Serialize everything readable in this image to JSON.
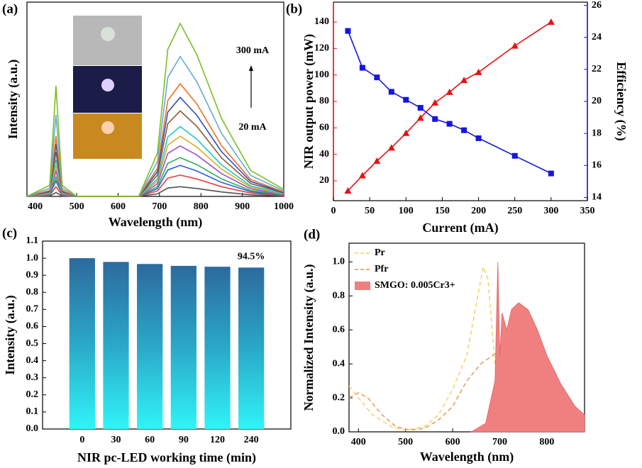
{
  "chart_data": [
    {
      "type": "line",
      "label": "(a)",
      "xlabel": "Wavelength (nm)",
      "ylabel": "Intensity (a.u.)",
      "annotations": [
        "300 mA",
        "20 mA"
      ],
      "xlim": [
        380,
        1000
      ],
      "xticks": [
        400,
        500,
        600,
        700,
        800,
        900,
        1000
      ],
      "ylim": [
        0,
        1
      ],
      "x": [
        380,
        435,
        450,
        465,
        500,
        650,
        695,
        720,
        750,
        790,
        850,
        920,
        1000
      ],
      "series": [
        {
          "color": "#505050",
          "values": [
            0,
            0.002,
            0.02,
            0.002,
            0,
            0,
            0.013,
            0.043,
            0.05,
            0.041,
            0.023,
            0.008,
            0.002
          ]
        },
        {
          "color": "#e8403a",
          "values": [
            0,
            0.005,
            0.05,
            0.005,
            0,
            0,
            0.028,
            0.094,
            0.11,
            0.09,
            0.05,
            0.017,
            0.004
          ]
        },
        {
          "color": "#2a5fd6",
          "values": [
            0,
            0.008,
            0.08,
            0.008,
            0,
            0,
            0.04,
            0.136,
            0.16,
            0.131,
            0.072,
            0.024,
            0.006
          ]
        },
        {
          "color": "#2fae5a",
          "values": [
            0,
            0.01,
            0.1,
            0.01,
            0,
            0,
            0.05,
            0.17,
            0.2,
            0.164,
            0.09,
            0.03,
            0.008
          ]
        },
        {
          "color": "#a050d0",
          "values": [
            0,
            0.013,
            0.13,
            0.013,
            0,
            0,
            0.065,
            0.221,
            0.26,
            0.213,
            0.117,
            0.039,
            0.01
          ]
        },
        {
          "color": "#d8b020",
          "values": [
            0,
            0.016,
            0.16,
            0.016,
            0,
            0,
            0.078,
            0.264,
            0.31,
            0.254,
            0.14,
            0.047,
            0.012
          ]
        },
        {
          "color": "#20c8c8",
          "values": [
            0,
            0.019,
            0.19,
            0.019,
            0,
            0,
            0.09,
            0.306,
            0.36,
            0.295,
            0.162,
            0.054,
            0.014
          ]
        },
        {
          "color": "#8a5a3a",
          "values": [
            0,
            0.023,
            0.23,
            0.023,
            0,
            0,
            0.11,
            0.374,
            0.44,
            0.361,
            0.198,
            0.066,
            0.018
          ]
        },
        {
          "color": "#3050c0",
          "values": [
            0,
            0.027,
            0.27,
            0.027,
            0,
            0,
            0.128,
            0.434,
            0.51,
            0.418,
            0.23,
            0.077,
            0.02
          ]
        },
        {
          "color": "#f07020",
          "values": [
            0,
            0.031,
            0.31,
            0.031,
            0,
            0,
            0.145,
            0.493,
            0.58,
            0.476,
            0.261,
            0.087,
            0.023
          ]
        },
        {
          "color": "#6aa8d8",
          "values": [
            0,
            0.042,
            0.42,
            0.042,
            0,
            0,
            0.18,
            0.612,
            0.72,
            0.59,
            0.324,
            0.108,
            0.029
          ]
        },
        {
          "color": "#78c020",
          "values": [
            0,
            0.057,
            0.57,
            0.057,
            0,
            0,
            0.223,
            0.757,
            0.89,
            0.73,
            0.4,
            0.134,
            0.036
          ]
        }
      ]
    },
    {
      "type": "line",
      "label": "(b)",
      "xlabel": "Current (mA)",
      "ylabel": "NIR output power (mW)",
      "y2label": "Efficiency (%)",
      "xlim": [
        0,
        350
      ],
      "xticks": [
        0,
        50,
        100,
        150,
        200,
        250,
        300,
        350
      ],
      "ylim": [
        5,
        155
      ],
      "yticks": [
        20,
        40,
        60,
        80,
        100,
        120,
        140
      ],
      "y2lim": [
        13.8,
        26.2
      ],
      "y2ticks": [
        14,
        16,
        18,
        20,
        22,
        24,
        26
      ],
      "x": [
        20,
        40,
        60,
        80,
        100,
        120,
        140,
        160,
        180,
        200,
        250,
        300
      ],
      "series": [
        {
          "color": "#e81010",
          "marker": "triangle",
          "values": [
            12.5,
            24,
            35,
            45,
            56,
            67.5,
            79,
            87,
            96,
            102,
            122,
            140
          ]
        },
        {
          "color": "#1515e0",
          "marker": "square",
          "axis": "y2",
          "values": [
            24.4,
            22.1,
            21.5,
            20.6,
            20.1,
            19.6,
            18.9,
            18.6,
            18.2,
            17.7,
            16.6,
            15.5
          ]
        }
      ]
    },
    {
      "type": "bar",
      "label": "(c)",
      "xlabel": "NIR pc-LED working time (min)",
      "ylabel": "Intensity (a.u.)",
      "annotation": "94.5%",
      "annotation_color": "#e81010",
      "categories": [
        "0",
        "30",
        "60",
        "90",
        "120",
        "240"
      ],
      "values": [
        1.0,
        0.978,
        0.966,
        0.955,
        0.95,
        0.945
      ],
      "ylim": [
        0,
        1.1
      ],
      "yticks": [
        {
          "value": 0,
          "label": "0.0"
        },
        0.1,
        0.2,
        0.3,
        0.4,
        0.5,
        0.6,
        0.7,
        0.8,
        0.9,
        {
          "value": 1,
          "label": "1.0"
        },
        1.1
      ]
    },
    {
      "type": "line",
      "label": "(d)",
      "xlabel": "Wavelength (nm)",
      "ylabel": "Normalized Intensity (a.u.)",
      "legend": "upper left",
      "xlim": [
        380,
        880
      ],
      "xticks": [
        400,
        500,
        600,
        700,
        800
      ],
      "ylim": [
        0,
        1.11
      ],
      "yticks": [
        {
          "value": 0,
          "label": "0.0"
        },
        0.2,
        0.4,
        0.6,
        0.8,
        {
          "value": 1,
          "label": "1.0"
        }
      ],
      "series": [
        {
          "name": "Pr",
          "color": "#f0d060",
          "style": "dashed",
          "x": [
            380,
            400,
            430,
            470,
            500,
            540,
            570,
            600,
            630,
            650,
            665,
            675,
            690,
            700,
            720,
            760
          ],
          "values": [
            0.27,
            0.2,
            0.1,
            0.03,
            0.01,
            0.03,
            0.1,
            0.25,
            0.45,
            0.75,
            0.97,
            0.9,
            0.4,
            0.1,
            0.03,
            0.01
          ]
        },
        {
          "name": "Pfr",
          "color": "#e8904a",
          "style": "dashed",
          "x": [
            380,
            400,
            420,
            450,
            480,
            510,
            540,
            570,
            600,
            630,
            660,
            690,
            710,
            730,
            745,
            760,
            775,
            800
          ],
          "values": [
            0.2,
            0.23,
            0.2,
            0.1,
            0.03,
            0.01,
            0.02,
            0.07,
            0.15,
            0.3,
            0.4,
            0.46,
            0.55,
            0.63,
            0.6,
            0.35,
            0.1,
            0.02
          ]
        },
        {
          "name": "SMGO: 0.005Cr3+",
          "color": "#f08080",
          "style": "area",
          "x": [
            640,
            670,
            690,
            696,
            700,
            705,
            715,
            725,
            740,
            760,
            780,
            800,
            830,
            860,
            880
          ],
          "values": [
            0,
            0.05,
            0.3,
            1.0,
            0.45,
            0.7,
            0.6,
            0.72,
            0.76,
            0.72,
            0.6,
            0.45,
            0.28,
            0.15,
            0.1
          ]
        }
      ]
    }
  ]
}
